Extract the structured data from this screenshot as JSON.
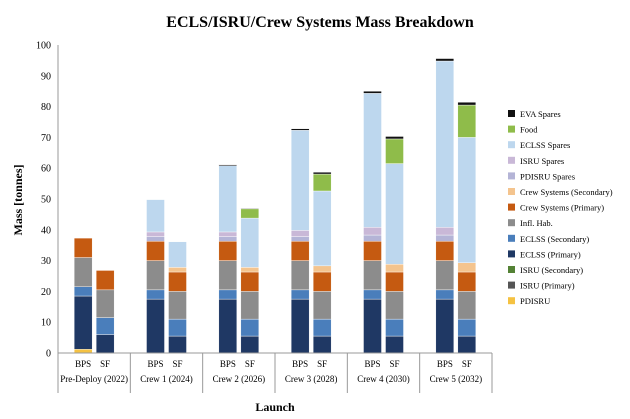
{
  "chart_data": {
    "type": "stacked-bar",
    "title": "ECLS/ISRU/Crew Systems Mass Breakdown",
    "xlabel": "Launch",
    "ylabel": "Mass [tonnes]",
    "ylim": [
      0,
      100
    ],
    "yticks": [
      0,
      10,
      20,
      30,
      40,
      50,
      60,
      70,
      80,
      90,
      100
    ],
    "grid": false,
    "legend_position": "right",
    "groups": [
      "Pre-Deploy (2022)",
      "Crew 1 (2024)",
      "Crew 2 (2026)",
      "Crew 3 (2028)",
      "Crew 4 (2030)",
      "Crew 5 (2032)"
    ],
    "bar_labels": [
      "BPS",
      "SF"
    ],
    "series": [
      {
        "name": "PDISRU",
        "color": "#f5c242",
        "values": [
          [
            1.2,
            0
          ],
          [
            0,
            0
          ],
          [
            0,
            0
          ],
          [
            0,
            0
          ],
          [
            0,
            0
          ],
          [
            0,
            0
          ],
          [
            0,
            0
          ],
          [
            0,
            0
          ],
          [
            0,
            0
          ],
          [
            0,
            0
          ],
          [
            0,
            0
          ],
          [
            0,
            0
          ]
        ]
      },
      {
        "name": "ISRU (Primary)",
        "color": "#555555",
        "values": [
          [
            0,
            0
          ],
          [
            0,
            0
          ],
          [
            0,
            0
          ],
          [
            0,
            0
          ],
          [
            0,
            0
          ],
          [
            0,
            0
          ],
          [
            0,
            0
          ],
          [
            0,
            0
          ],
          [
            0,
            0
          ],
          [
            0,
            0
          ],
          [
            0,
            0
          ],
          [
            0,
            0
          ]
        ]
      },
      {
        "name": "ISRU (Secondary)",
        "color": "#548235",
        "values": [
          [
            0,
            0
          ],
          [
            0,
            0
          ],
          [
            0,
            0
          ],
          [
            0,
            0
          ],
          [
            0,
            0
          ],
          [
            0,
            0
          ],
          [
            0,
            0
          ],
          [
            0,
            0
          ],
          [
            0,
            0
          ],
          [
            0,
            0
          ],
          [
            0,
            0
          ],
          [
            0,
            0
          ]
        ]
      },
      {
        "name": "ECLSS (Primary)",
        "color": "#1f3864",
        "values": [
          [
            17.3,
            0
          ],
          [
            6,
            0
          ],
          [
            17.5,
            0
          ],
          [
            5.5,
            0
          ],
          [
            17.5,
            0
          ],
          [
            5.5,
            0
          ],
          [
            17.5,
            0
          ],
          [
            5.5,
            0
          ],
          [
            17.5,
            0
          ],
          [
            5.5,
            0
          ],
          [
            17.5,
            0
          ],
          [
            5.5,
            0
          ]
        ]
      },
      {
        "name": "ECLSS (Secondary)",
        "color": "#4a7ebb",
        "values": [
          [
            3,
            0
          ],
          [
            5.5,
            0
          ],
          [
            3,
            0
          ],
          [
            5.5,
            0
          ],
          [
            3,
            0
          ],
          [
            5.5,
            0
          ],
          [
            3,
            0
          ],
          [
            5.5,
            0
          ],
          [
            3,
            0
          ],
          [
            5.5,
            0
          ],
          [
            3,
            0
          ],
          [
            5.5,
            0
          ]
        ]
      },
      {
        "name": "Infl. Hab.",
        "color": "#8c8c8c",
        "values": [
          [
            9.5,
            0
          ],
          [
            9,
            0
          ],
          [
            9.5,
            0
          ],
          [
            9,
            0
          ],
          [
            9.5,
            0
          ],
          [
            9,
            0
          ],
          [
            9.5,
            0
          ],
          [
            9,
            0
          ],
          [
            9.5,
            0
          ],
          [
            9,
            0
          ],
          [
            9.5,
            0
          ],
          [
            9,
            0
          ]
        ]
      },
      {
        "name": "Crew Systems (Primary)",
        "color": "#c55a11",
        "values": [
          [
            6.3,
            0
          ],
          [
            6.3,
            0
          ],
          [
            6.3,
            0
          ],
          [
            6.3,
            0
          ],
          [
            6.3,
            0
          ],
          [
            6.3,
            0
          ],
          [
            6.3,
            0
          ],
          [
            6.3,
            0
          ],
          [
            6.3,
            0
          ],
          [
            6.3,
            0
          ],
          [
            6.3,
            0
          ],
          [
            6.3,
            0
          ]
        ]
      },
      {
        "name": "Crew Systems (Secondary)",
        "color": "#f4c48e",
        "values": [
          [
            0,
            0
          ],
          [
            0,
            0
          ],
          [
            0,
            0
          ],
          [
            1.5,
            0
          ],
          [
            0,
            0
          ],
          [
            1.5,
            0
          ],
          [
            0,
            0
          ],
          [
            2,
            0
          ],
          [
            0,
            0
          ],
          [
            2.5,
            0
          ],
          [
            0,
            0
          ],
          [
            3,
            0
          ]
        ]
      },
      {
        "name": "PDISRU Spares",
        "color": "#b4b4d6",
        "values": [
          [
            0,
            0
          ],
          [
            0,
            0
          ],
          [
            1.5,
            0
          ],
          [
            0,
            0
          ],
          [
            1.5,
            0
          ],
          [
            0,
            0
          ],
          [
            1.5,
            0
          ],
          [
            0,
            0
          ],
          [
            2,
            0
          ],
          [
            0,
            0
          ],
          [
            2,
            0
          ],
          [
            0,
            0
          ]
        ]
      },
      {
        "name": "ISRU Spares",
        "color": "#c9b8d7",
        "values": [
          [
            0,
            0
          ],
          [
            0,
            0
          ],
          [
            1.5,
            0
          ],
          [
            0,
            0
          ],
          [
            1.5,
            0
          ],
          [
            0,
            0
          ],
          [
            2,
            0
          ],
          [
            0,
            0
          ],
          [
            2.5,
            0
          ],
          [
            0,
            0
          ],
          [
            2.5,
            0
          ],
          [
            0,
            0
          ]
        ]
      },
      {
        "name": "ECLSS Spares",
        "color": "#bdd7ee",
        "values": [
          [
            0,
            0
          ],
          [
            0,
            0
          ],
          [
            10.5,
            0
          ],
          [
            8.3,
            0
          ],
          [
            21.5,
            0
          ],
          [
            16,
            0
          ],
          [
            32.5,
            0
          ],
          [
            24.3,
            0
          ],
          [
            43.5,
            0
          ],
          [
            32.7,
            0
          ],
          [
            54,
            0
          ],
          [
            40.7,
            0
          ]
        ]
      },
      {
        "name": "Food",
        "color": "#8fbc4a",
        "values": [
          [
            0,
            0
          ],
          [
            0,
            0
          ],
          [
            0,
            0
          ],
          [
            0,
            0
          ],
          [
            0,
            0
          ],
          [
            3,
            0
          ],
          [
            0,
            0
          ],
          [
            5.5,
            0
          ],
          [
            0,
            0
          ],
          [
            8,
            0
          ],
          [
            0,
            0
          ],
          [
            10.5,
            0
          ]
        ]
      },
      {
        "name": "EVA Spares",
        "color": "#111111",
        "values": [
          [
            0,
            0
          ],
          [
            0,
            0
          ],
          [
            0,
            0
          ],
          [
            0,
            0
          ],
          [
            0.3,
            0
          ],
          [
            0.2,
            0
          ],
          [
            0.5,
            0
          ],
          [
            0.6,
            0
          ],
          [
            0.7,
            0
          ],
          [
            0.8,
            0
          ],
          [
            0.8,
            0
          ],
          [
            0.9,
            0
          ]
        ]
      }
    ]
  }
}
